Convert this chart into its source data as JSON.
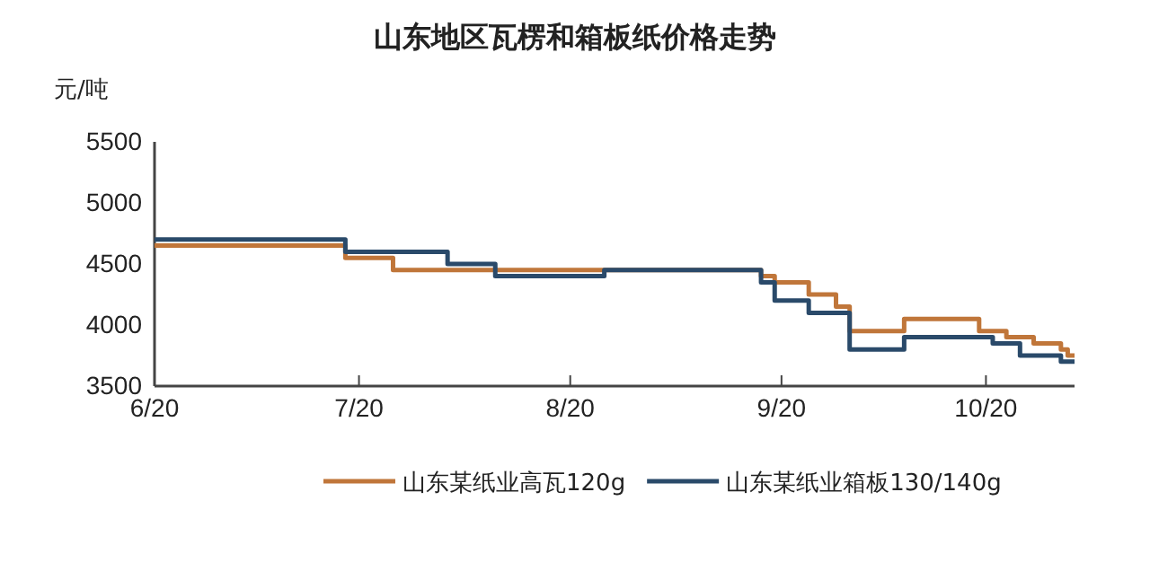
{
  "chart_data": {
    "type": "step",
    "title": "山东地区瓦楞和箱板纸价格走势",
    "ylabel": "元/吨",
    "xlim": [
      "--06-20",
      "--11-02"
    ],
    "xticks": [
      {
        "value": "--06-20",
        "label": "6/20"
      },
      {
        "value": "--07-20",
        "label": "7/20"
      },
      {
        "value": "--08-20",
        "label": "8/20"
      },
      {
        "value": "--09-20",
        "label": "9/20"
      },
      {
        "value": "--10-20",
        "label": "10/20"
      }
    ],
    "ylim": [
      3500,
      5500
    ],
    "yticks": [
      3500,
      4000,
      4500,
      5000,
      5500
    ],
    "legend": "bottom",
    "grid": false,
    "line_style": "solid",
    "marker": "none",
    "series": [
      {
        "name": "山东某纸业高瓦120g",
        "color": "#c0763a",
        "x": [
          "--06-20",
          "--07-18",
          "--07-25",
          "--09-17",
          "--09-19",
          "--09-24",
          "--09-28",
          "--09-30",
          "--10-08",
          "--10-19",
          "--10-23",
          "--10-27",
          "--10-31",
          "--11-01",
          "--11-02"
        ],
        "values": [
          4650,
          4550,
          4450,
          4400,
          4350,
          4250,
          4150,
          3950,
          4050,
          3950,
          3900,
          3850,
          3800,
          3750,
          3750
        ]
      },
      {
        "name": "山东某纸业箱板130/140g",
        "color": "#2a4a6a",
        "x": [
          "--06-20",
          "--07-18",
          "--08-02",
          "--08-09",
          "--08-25",
          "--09-17",
          "--09-19",
          "--09-24",
          "--09-30",
          "--10-08",
          "--10-21",
          "--10-25",
          "--10-31",
          "--11-02"
        ],
        "values": [
          4700,
          4600,
          4500,
          4400,
          4450,
          4350,
          4200,
          4100,
          3800,
          3900,
          3850,
          3750,
          3700,
          3700
        ]
      }
    ]
  }
}
